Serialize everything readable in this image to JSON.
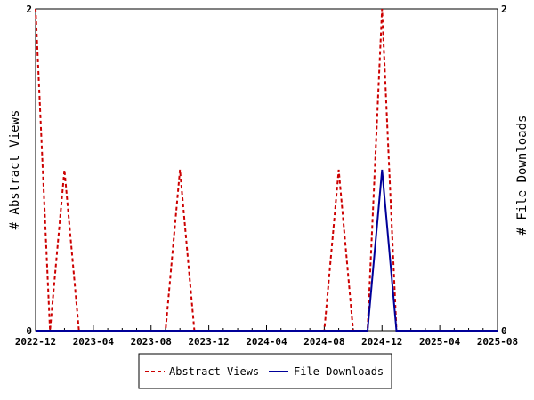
{
  "chart_data": {
    "type": "line",
    "title": "",
    "ylabel_left": "# Abstract Views",
    "ylabel_right": "# File Downloads",
    "x_tick_labels": [
      "2022-12",
      "2023-04",
      "2023-08",
      "2023-12",
      "2024-04",
      "2024-08",
      "2024-12",
      "2025-04",
      "2025-08"
    ],
    "y_left_ticks": [
      "0",
      "2"
    ],
    "y_right_ticks": [
      "0",
      "2"
    ],
    "ylim": [
      0,
      2
    ],
    "x": [
      "2022-12",
      "2023-01",
      "2023-02",
      "2023-03",
      "2023-04",
      "2023-05",
      "2023-06",
      "2023-07",
      "2023-08",
      "2023-09",
      "2023-10",
      "2023-11",
      "2023-12",
      "2024-01",
      "2024-02",
      "2024-03",
      "2024-04",
      "2024-05",
      "2024-06",
      "2024-07",
      "2024-08",
      "2024-09",
      "2024-10",
      "2024-11",
      "2024-12",
      "2025-01",
      "2025-02",
      "2025-03",
      "2025-04",
      "2025-05",
      "2025-06",
      "2025-07",
      "2025-08"
    ],
    "series": [
      {
        "name": "Abstract Views",
        "color": "#cc0000",
        "style": "dashed",
        "axis": "left",
        "values": [
          2,
          0,
          1,
          0,
          0,
          0,
          0,
          0,
          0,
          0,
          1,
          0,
          0,
          0,
          0,
          0,
          0,
          0,
          0,
          0,
          0,
          1,
          0,
          0,
          2,
          0,
          0,
          0,
          0,
          0,
          0,
          0,
          0
        ]
      },
      {
        "name": "File Downloads",
        "color": "#000099",
        "style": "solid",
        "axis": "right",
        "values": [
          0,
          0,
          0,
          0,
          0,
          0,
          0,
          0,
          0,
          0,
          0,
          0,
          0,
          0,
          0,
          0,
          0,
          0,
          0,
          0,
          0,
          0,
          0,
          0,
          1,
          0,
          0,
          0,
          0,
          0,
          0,
          0,
          0
        ]
      }
    ],
    "grid": false,
    "legend_position": "bottom"
  }
}
